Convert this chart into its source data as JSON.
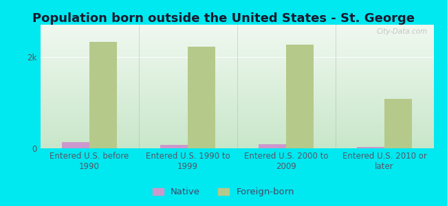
{
  "title": "Population born outside the United States - St. George",
  "categories": [
    "Entered U.S. before\n1990",
    "Entered U.S. 1990 to\n1999",
    "Entered U.S. 2000 to\n2009",
    "Entered U.S. 2010 or\nlater"
  ],
  "native_values": [
    130,
    75,
    95,
    35
  ],
  "foreign_born_values": [
    2320,
    2220,
    2260,
    1080
  ],
  "native_color": "#cc99cc",
  "foreign_born_color": "#b5c98a",
  "background_outer": "#00e8f0",
  "grad_color_top_left": "#c8e6c9",
  "grad_color_top_right": "#e8f5e9",
  "grad_color_bottom": "#f0fff0",
  "ylim": [
    0,
    2700
  ],
  "yticks": [
    0,
    2000
  ],
  "ytick_labels": [
    "0",
    "2k"
  ],
  "bar_width": 0.28,
  "title_fontsize": 13,
  "tick_label_fontsize": 8.5,
  "legend_fontsize": 9.5,
  "watermark": "City-Data.com",
  "title_color": "#1a1a2e"
}
